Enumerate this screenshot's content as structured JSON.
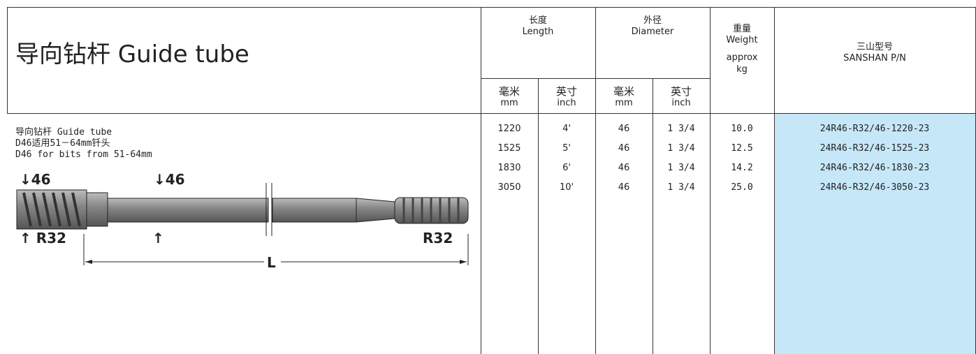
{
  "header": {
    "title": "导向钻杆 Guide tube",
    "length": {
      "zh": "长度",
      "en": "Length"
    },
    "diameter": {
      "zh": "外径",
      "en": "Diameter"
    },
    "weight": {
      "zh": "重量",
      "en": "Weight",
      "approx": "approx",
      "unit": "kg"
    },
    "pn": {
      "zh": "三山型号",
      "en": "SANSHAN P/N"
    },
    "units": [
      {
        "zh": "毫米",
        "en": "mm"
      },
      {
        "zh": "英寸",
        "en": "inch"
      },
      {
        "zh": "毫米",
        "en": "mm"
      },
      {
        "zh": "英寸",
        "en": "inch"
      }
    ]
  },
  "description": [
    "导向钻杆  Guide tube",
    "D46适用51－64mm钎头",
    "D46 for bits from 51-64mm"
  ],
  "diagram": {
    "labels": [
      "↓46",
      "↓46",
      "↑ R32",
      "↑",
      "R32",
      "L"
    ]
  },
  "table": {
    "rows": [
      [
        "1220",
        "4'",
        "46",
        "1 3/4",
        "10.0",
        "24R46-R32/46-1220-23"
      ],
      [
        "1525",
        "5'",
        "46",
        "1 3/4",
        "12.5",
        "24R46-R32/46-1525-23"
      ],
      [
        "1830",
        "6'",
        "46",
        "1 3/4",
        "14.2",
        "24R46-R32/46-1830-23"
      ],
      [
        "3050",
        "10'",
        "46",
        "1 3/4",
        "25.0",
        "24R46-R32/46-3050-23"
      ]
    ]
  }
}
